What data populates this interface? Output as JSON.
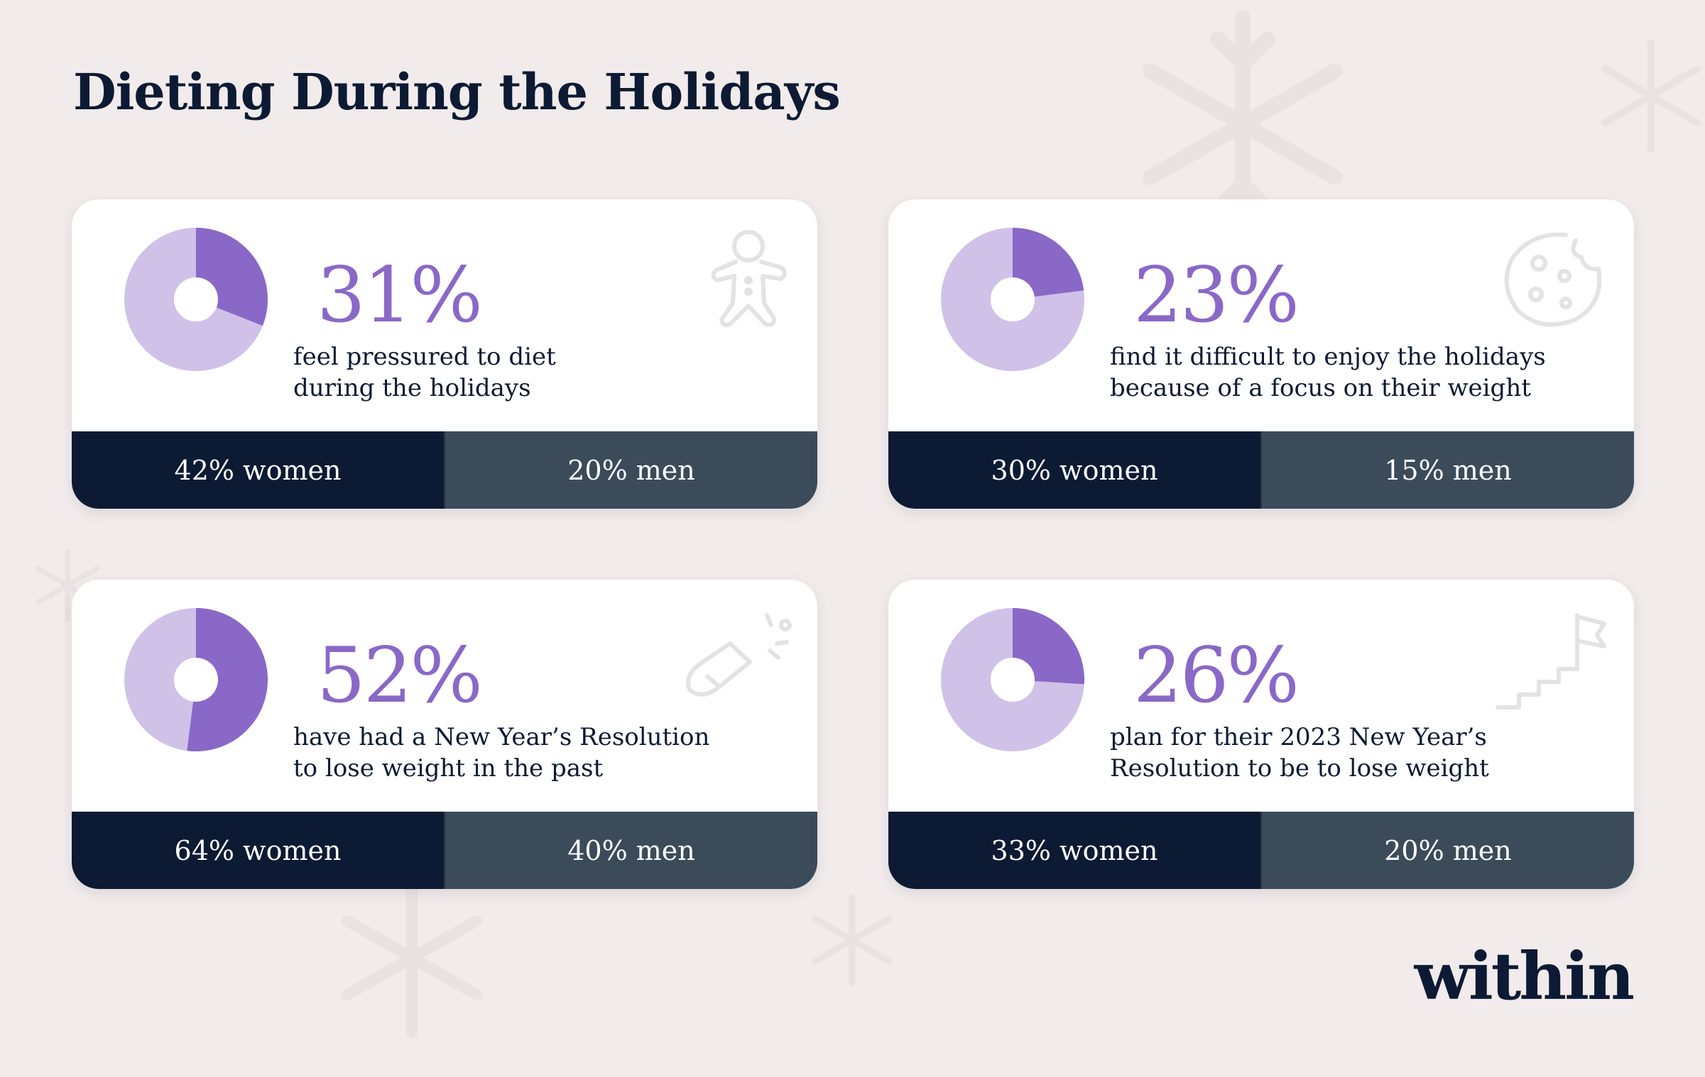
{
  "title": "Dieting During the Holidays",
  "brand": "within",
  "colors": {
    "accent": "#8a68c7",
    "accent_light": "#cfc1e8",
    "women_bar": "#0d1a33",
    "men_bar": "#3b4b5a",
    "background": "#f1ebeb"
  },
  "cards": [
    {
      "percent_label": "31%",
      "desc_line1": "feel pressured to diet",
      "desc_line2": "during the holidays",
      "women": "42% women",
      "men": "20% men",
      "icon": "gingerbread-man-icon"
    },
    {
      "percent_label": "23%",
      "desc_line1": "find it difficult to enjoy the holidays",
      "desc_line2": "because of a focus on their weight",
      "women": "30% women",
      "men": "15% men",
      "icon": "cookie-icon"
    },
    {
      "percent_label": "52%",
      "desc_line1": "have had a New Year’s Resolution",
      "desc_line2": "to lose weight in the past",
      "women": "64% women",
      "men": "40% men",
      "icon": "champagne-bottle-icon"
    },
    {
      "percent_label": "26%",
      "desc_line1": "plan for their 2023 New Year’s",
      "desc_line2": "Resolution to be to lose weight",
      "women": "33% women",
      "men": "20% men",
      "icon": "stairs-flag-icon"
    }
  ],
  "chart_data": {
    "type": "pie",
    "title": "Dieting During the Holidays",
    "donuts": [
      {
        "value": 31,
        "women": 42,
        "men": 20
      },
      {
        "value": 23,
        "women": 30,
        "men": 15
      },
      {
        "value": 52,
        "women": 64,
        "men": 40
      },
      {
        "value": 26,
        "women": 33,
        "men": 20
      }
    ]
  }
}
